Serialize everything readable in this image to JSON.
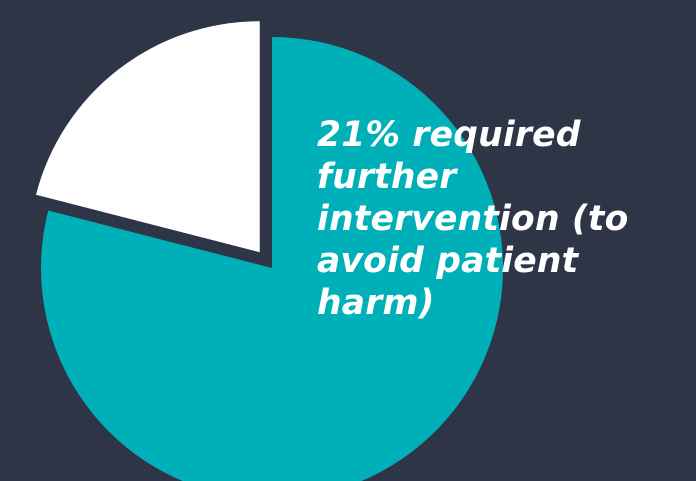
{
  "colors": {
    "background": "#2d3546",
    "main_slice": "#00b0b9",
    "highlight_slice": "#ffffff",
    "text": "#ffffff"
  },
  "callout": {
    "text": "21% required further intervention (to avoid patient harm)"
  },
  "chart_data": {
    "type": "pie",
    "categories": [
      "",
      ""
    ],
    "values": [
      21,
      79
    ],
    "exploded": [
      true,
      false
    ]
  }
}
